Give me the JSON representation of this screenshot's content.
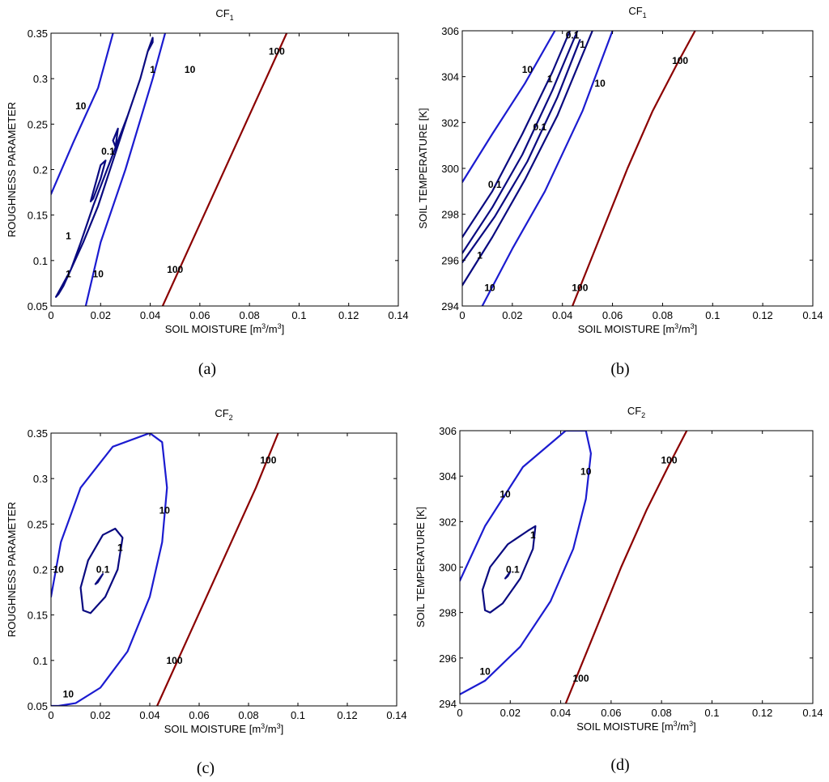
{
  "chart_data": [
    {
      "type": "contour",
      "panel": "a",
      "caption": "(a)",
      "title": "CF",
      "title_sub": "1",
      "xlabel": "SOIL MOISTURE [m",
      "xlabel_unit": [
        "3",
        "/m",
        "3",
        "]"
      ],
      "ylabel": "ROUGHNESS PARAMETER",
      "xlim": [
        0,
        0.14
      ],
      "ylim": [
        0.05,
        0.35
      ],
      "xticks": [
        "0",
        "0.02",
        "0.04",
        "0.06",
        "0.08",
        "0.1",
        "0.12",
        "0.14"
      ],
      "yticks": [
        "0.05",
        "0.1",
        "0.15",
        "0.2",
        "0.25",
        "0.3",
        "0.35"
      ],
      "contours": [
        {
          "level": "10",
          "color": "#1b1bd0",
          "closed": false,
          "points": [
            [
              0,
              0.173
            ],
            [
              0.009,
              0.23
            ],
            [
              0.019,
              0.29
            ],
            [
              0.025,
              0.35
            ]
          ]
        },
        {
          "level": "10",
          "color": "#1b1bd0",
          "closed": false,
          "points": [
            [
              0.014,
              0.05
            ],
            [
              0.02,
              0.12
            ],
            [
              0.03,
              0.2
            ],
            [
              0.041,
              0.3
            ],
            [
              0.046,
              0.35
            ]
          ]
        },
        {
          "level": "1",
          "color": "#0a0a80",
          "closed": true,
          "points": [
            [
              0.002,
              0.06
            ],
            [
              0.003,
              0.063
            ],
            [
              0.005,
              0.072
            ],
            [
              0.008,
              0.09
            ],
            [
              0.012,
              0.12
            ],
            [
              0.017,
              0.16
            ],
            [
              0.024,
              0.21
            ],
            [
              0.031,
              0.26
            ],
            [
              0.036,
              0.3
            ],
            [
              0.039,
              0.33
            ],
            [
              0.041,
              0.345
            ],
            [
              0.041,
              0.34
            ],
            [
              0.039,
              0.33
            ],
            [
              0.036,
              0.3
            ],
            [
              0.031,
              0.26
            ],
            [
              0.025,
              0.21
            ],
            [
              0.019,
              0.16
            ],
            [
              0.013,
              0.12
            ],
            [
              0.008,
              0.09
            ],
            [
              0.004,
              0.07
            ],
            [
              0.002,
              0.06
            ]
          ]
        },
        {
          "level": "0.1",
          "color": "#0a0a80",
          "closed": true,
          "points": [
            [
              0.016,
              0.165
            ],
            [
              0.02,
              0.205
            ],
            [
              0.022,
              0.21
            ],
            [
              0.02,
              0.19
            ],
            [
              0.017,
              0.168
            ],
            [
              0.016,
              0.165
            ]
          ]
        },
        {
          "level": "1",
          "color": "#0a0a80",
          "closed": false,
          "points": [
            [
              0.026,
              0.225
            ],
            [
              0.027,
              0.245
            ],
            [
              0.025,
              0.232
            ],
            [
              0.026,
              0.225
            ]
          ]
        },
        {
          "level": "100",
          "color": "#8b0000",
          "closed": false,
          "points": [
            [
              0.045,
              0.05
            ],
            [
              0.055,
              0.11
            ],
            [
              0.065,
              0.17
            ],
            [
              0.075,
              0.23
            ],
            [
              0.085,
              0.29
            ],
            [
              0.095,
              0.35
            ]
          ]
        }
      ],
      "labels": [
        {
          "text": "10",
          "x": 0.012,
          "y": 0.27
        },
        {
          "text": "10",
          "x": 0.056,
          "y": 0.31
        },
        {
          "text": "10",
          "x": 0.019,
          "y": 0.085
        },
        {
          "text": "1",
          "x": 0.041,
          "y": 0.31
        },
        {
          "text": "1",
          "x": 0.007,
          "y": 0.127
        },
        {
          "text": "1",
          "x": 0.007,
          "y": 0.085
        },
        {
          "text": "0.1",
          "x": 0.023,
          "y": 0.22
        },
        {
          "text": "100",
          "x": 0.091,
          "y": 0.33
        },
        {
          "text": "100",
          "x": 0.05,
          "y": 0.09
        }
      ]
    },
    {
      "type": "contour",
      "panel": "b",
      "caption": "(b)",
      "title": "CF",
      "title_sub": "1",
      "xlabel": "SOIL MOISTURE [m",
      "xlabel_unit": [
        "3",
        "/m",
        "3",
        "]"
      ],
      "ylabel": "SOIL TEMPERATURE [K]",
      "xlim": [
        0,
        0.14
      ],
      "ylim": [
        294,
        306
      ],
      "xticks": [
        "0",
        "0.02",
        "0.04",
        "0.06",
        "0.08",
        "0.1",
        "0.12",
        "0.14"
      ],
      "yticks": [
        "294",
        "296",
        "298",
        "300",
        "302",
        "304",
        "306"
      ],
      "contours": [
        {
          "level": "10",
          "color": "#1b1bd0",
          "closed": false,
          "points": [
            [
              0,
              299.4
            ],
            [
              0.012,
              301.5
            ],
            [
              0.025,
              303.7
            ],
            [
              0.037,
              306
            ]
          ]
        },
        {
          "level": "10",
          "color": "#1b1bd0",
          "closed": false,
          "points": [
            [
              0.008,
              294
            ],
            [
              0.02,
              296.5
            ],
            [
              0.033,
              299
            ],
            [
              0.048,
              302.5
            ],
            [
              0.06,
              306
            ]
          ]
        },
        {
          "level": "1",
          "color": "#0a0a80",
          "closed": false,
          "points": [
            [
              0,
              297
            ],
            [
              0.012,
              299
            ],
            [
              0.024,
              301.5
            ],
            [
              0.036,
              304.2
            ],
            [
              0.043,
              306
            ]
          ]
        },
        {
          "level": "1",
          "color": "#0a0a80",
          "closed": false,
          "points": [
            [
              0,
              294.9
            ],
            [
              0.012,
              297
            ],
            [
              0.025,
              299.5
            ],
            [
              0.038,
              302.3
            ],
            [
              0.052,
              306
            ]
          ]
        },
        {
          "level": "0.1",
          "color": "#0a0a80",
          "closed": false,
          "points": [
            [
              0,
              296.3
            ],
            [
              0.012,
              298.3
            ],
            [
              0.024,
              300.6
            ],
            [
              0.036,
              303.4
            ],
            [
              0.046,
              306
            ]
          ]
        },
        {
          "level": "0.1",
          "color": "#0a0a80",
          "closed": false,
          "points": [
            [
              0,
              295.9
            ],
            [
              0.013,
              297.9
            ],
            [
              0.026,
              300.3
            ],
            [
              0.038,
              303.1
            ],
            [
              0.047,
              305.6
            ]
          ]
        },
        {
          "level": "100",
          "color": "#8b0000",
          "closed": false,
          "points": [
            [
              0.044,
              294
            ],
            [
              0.055,
              297
            ],
            [
              0.066,
              300
            ],
            [
              0.076,
              302.5
            ],
            [
              0.086,
              304.6
            ],
            [
              0.093,
              306
            ]
          ]
        }
      ],
      "labels": [
        {
          "text": "10",
          "x": 0.026,
          "y": 304.3
        },
        {
          "text": "10",
          "x": 0.055,
          "y": 303.7
        },
        {
          "text": "10",
          "x": 0.011,
          "y": 294.8
        },
        {
          "text": "1",
          "x": 0.035,
          "y": 303.9
        },
        {
          "text": "1",
          "x": 0.048,
          "y": 305.4
        },
        {
          "text": "1",
          "x": 0.007,
          "y": 296.2
        },
        {
          "text": "0.1",
          "x": 0.013,
          "y": 299.3
        },
        {
          "text": "0.1",
          "x": 0.031,
          "y": 301.8
        },
        {
          "text": "0.1",
          "x": 0.044,
          "y": 305.8
        },
        {
          "text": "100",
          "x": 0.087,
          "y": 304.7
        },
        {
          "text": "100",
          "x": 0.047,
          "y": 294.8
        }
      ]
    },
    {
      "type": "contour",
      "panel": "c",
      "caption": "(c)",
      "title": "CF",
      "title_sub": "2",
      "xlabel": "SOIL MOISTURE [m",
      "xlabel_unit": [
        "3",
        "/m",
        "3",
        "]"
      ],
      "ylabel": "ROUGHNESS PARAMETER",
      "xlim": [
        0,
        0.14
      ],
      "ylim": [
        0.05,
        0.35
      ],
      "xticks": [
        "0",
        "0.02",
        "0.04",
        "0.06",
        "0.08",
        "0.1",
        "0.12",
        "0.14"
      ],
      "yticks": [
        "0.05",
        "0.1",
        "0.15",
        "0.2",
        "0.25",
        "0.3",
        "0.35"
      ],
      "contours": [
        {
          "level": "10",
          "color": "#1b1bd0",
          "closed": false,
          "points": [
            [
              0,
              0.17
            ],
            [
              0.004,
              0.23
            ],
            [
              0.012,
              0.29
            ],
            [
              0.025,
              0.335
            ],
            [
              0.04,
              0.35
            ],
            [
              0.045,
              0.34
            ],
            [
              0.047,
              0.29
            ],
            [
              0.045,
              0.23
            ],
            [
              0.04,
              0.17
            ],
            [
              0.031,
              0.11
            ],
            [
              0.02,
              0.07
            ],
            [
              0.01,
              0.053
            ],
            [
              0.003,
              0.05
            ],
            [
              0,
              0.05
            ]
          ]
        },
        {
          "level": "1",
          "color": "#0a0a80",
          "closed": true,
          "points": [
            [
              0.013,
              0.155
            ],
            [
              0.012,
              0.18
            ],
            [
              0.015,
              0.21
            ],
            [
              0.021,
              0.238
            ],
            [
              0.026,
              0.245
            ],
            [
              0.029,
              0.235
            ],
            [
              0.027,
              0.2
            ],
            [
              0.022,
              0.17
            ],
            [
              0.016,
              0.152
            ],
            [
              0.013,
              0.155
            ]
          ]
        },
        {
          "level": "0.1",
          "color": "#0a0a80",
          "closed": false,
          "points": [
            [
              0.018,
              0.184
            ],
            [
              0.021,
              0.195
            ],
            [
              0.019,
              0.186
            ],
            [
              0.018,
              0.184
            ]
          ]
        },
        {
          "level": "100",
          "color": "#8b0000",
          "closed": false,
          "points": [
            [
              0.043,
              0.05
            ],
            [
              0.053,
              0.11
            ],
            [
              0.063,
              0.17
            ],
            [
              0.073,
              0.23
            ],
            [
              0.083,
              0.29
            ],
            [
              0.092,
              0.35
            ]
          ]
        }
      ],
      "labels": [
        {
          "text": "10",
          "x": 0.003,
          "y": 0.2
        },
        {
          "text": "10",
          "x": 0.046,
          "y": 0.265
        },
        {
          "text": "10",
          "x": 0.007,
          "y": 0.063
        },
        {
          "text": "1",
          "x": 0.028,
          "y": 0.224
        },
        {
          "text": "0.1",
          "x": 0.021,
          "y": 0.2
        },
        {
          "text": "100",
          "x": 0.088,
          "y": 0.32
        },
        {
          "text": "100",
          "x": 0.05,
          "y": 0.1
        }
      ]
    },
    {
      "type": "contour",
      "panel": "d",
      "caption": "(d)",
      "title": "CF",
      "title_sub": "2",
      "xlabel": "SOIL MOISTURE [m",
      "xlabel_unit": [
        "3",
        "/m",
        "3",
        "]"
      ],
      "ylabel": "SOIL TEMPERATURE [K]",
      "xlim": [
        0,
        0.14
      ],
      "ylim": [
        294,
        306
      ],
      "xticks": [
        "0",
        "0.02",
        "0.04",
        "0.06",
        "0.08",
        "0.1",
        "0.12",
        "0.14"
      ],
      "yticks": [
        "294",
        "296",
        "298",
        "300",
        "302",
        "304",
        "306"
      ],
      "contours": [
        {
          "level": "10",
          "color": "#1b1bd0",
          "closed": false,
          "points": [
            [
              0,
              299.4
            ],
            [
              0.01,
              301.8
            ],
            [
              0.025,
              304.4
            ],
            [
              0.042,
              306
            ],
            [
              0.05,
              306
            ],
            [
              0.052,
              305
            ],
            [
              0.05,
              303
            ],
            [
              0.045,
              300.8
            ],
            [
              0.036,
              298.5
            ],
            [
              0.024,
              296.5
            ],
            [
              0.01,
              295
            ],
            [
              0,
              294.4
            ]
          ]
        },
        {
          "level": "1",
          "color": "#0a0a80",
          "closed": true,
          "points": [
            [
              0.01,
              298.1
            ],
            [
              0.009,
              299
            ],
            [
              0.012,
              300
            ],
            [
              0.019,
              301
            ],
            [
              0.027,
              301.6
            ],
            [
              0.03,
              301.8
            ],
            [
              0.029,
              300.8
            ],
            [
              0.024,
              299.5
            ],
            [
              0.017,
              298.4
            ],
            [
              0.012,
              298
            ],
            [
              0.01,
              298.1
            ]
          ]
        },
        {
          "level": "0.1",
          "color": "#0a0a80",
          "closed": false,
          "points": [
            [
              0.018,
              299.5
            ],
            [
              0.02,
              299.8
            ],
            [
              0.019,
              299.6
            ],
            [
              0.018,
              299.5
            ]
          ]
        },
        {
          "level": "100",
          "color": "#8b0000",
          "closed": false,
          "points": [
            [
              0.042,
              294
            ],
            [
              0.053,
              297
            ],
            [
              0.064,
              300
            ],
            [
              0.074,
              302.5
            ],
            [
              0.083,
              304.5
            ],
            [
              0.09,
              306
            ]
          ]
        }
      ],
      "labels": [
        {
          "text": "10",
          "x": 0.018,
          "y": 303.2
        },
        {
          "text": "10",
          "x": 0.05,
          "y": 304.2
        },
        {
          "text": "10",
          "x": 0.01,
          "y": 295.4
        },
        {
          "text": "1",
          "x": 0.029,
          "y": 301.4
        },
        {
          "text": "0.1",
          "x": 0.021,
          "y": 299.9
        },
        {
          "text": "100",
          "x": 0.083,
          "y": 304.7
        },
        {
          "text": "100",
          "x": 0.048,
          "y": 295.1
        }
      ]
    }
  ]
}
